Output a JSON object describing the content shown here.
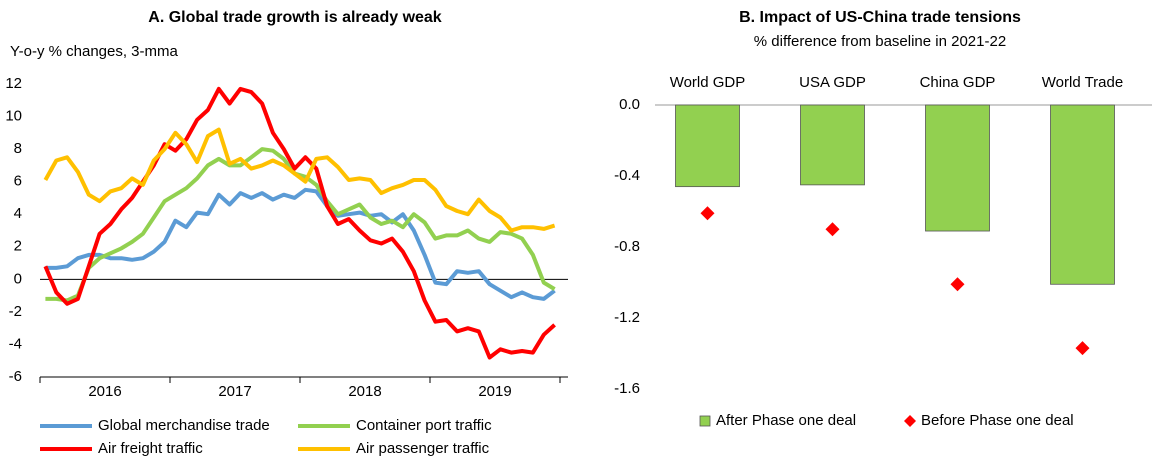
{
  "chart_data": [
    {
      "type": "line",
      "title": "A. Global trade growth is already weak",
      "y_label": "Y-o-y % changes, 3-mma",
      "categories": [
        null,
        null,
        null,
        null,
        null,
        null,
        "2016",
        null,
        null,
        null,
        null,
        null,
        null,
        null,
        null,
        null,
        null,
        null,
        "2017",
        null,
        null,
        null,
        null,
        null,
        null,
        null,
        null,
        null,
        null,
        null,
        "2018",
        null,
        null,
        null,
        null,
        null,
        null,
        null,
        null,
        null,
        null,
        null,
        "2019",
        null,
        null,
        null,
        null,
        null
      ],
      "ylim": [
        -6,
        12
      ],
      "yticks": [
        -6,
        -4,
        -2,
        0,
        2,
        4,
        6,
        8,
        10,
        12
      ],
      "series": [
        {
          "name": "Global merchandise trade",
          "color": "#5b9bd5",
          "values": [
            0.7,
            0.7,
            0.8,
            1.3,
            1.5,
            1.5,
            1.3,
            1.3,
            1.2,
            1.3,
            1.7,
            2.3,
            3.6,
            3.2,
            4.1,
            4.0,
            5.2,
            4.6,
            5.3,
            5.0,
            5.3,
            4.9,
            5.2,
            5.0,
            5.5,
            5.4,
            4.5,
            3.9,
            4.0,
            4.1,
            3.9,
            4.0,
            3.5,
            4.0,
            3.0,
            1.5,
            -0.2,
            -0.3,
            0.5,
            0.4,
            0.5,
            -0.3,
            -0.7,
            -1.1,
            -0.8,
            -1.1,
            -1.2,
            -0.7
          ]
        },
        {
          "name": "Container port traffic",
          "color": "#92d050",
          "values": [
            -1.2,
            -1.2,
            -1.3,
            -1.0,
            0.7,
            1.3,
            1.6,
            1.9,
            2.3,
            2.8,
            3.8,
            4.8,
            5.2,
            5.6,
            6.2,
            7.0,
            7.4,
            7.0,
            7.0,
            7.5,
            8.0,
            7.9,
            7.4,
            6.5,
            6.3,
            5.8,
            4.8,
            4.0,
            4.3,
            4.6,
            3.8,
            3.4,
            3.6,
            3.2,
            4.0,
            3.5,
            2.5,
            2.7,
            2.7,
            3.0,
            2.5,
            2.3,
            2.9,
            2.8,
            2.5,
            1.5,
            -0.2,
            -0.6
          ]
        },
        {
          "name": "Air freight traffic",
          "color": "#ff0000",
          "values": [
            0.8,
            -0.8,
            -1.5,
            -1.2,
            0.8,
            2.8,
            3.4,
            4.3,
            5.0,
            6.0,
            7.0,
            8.3,
            7.9,
            8.6,
            9.8,
            10.4,
            11.7,
            10.8,
            11.7,
            11.5,
            10.8,
            9.0,
            8.0,
            6.8,
            7.5,
            6.8,
            4.5,
            3.4,
            3.7,
            3.0,
            2.4,
            2.2,
            2.5,
            1.7,
            0.5,
            -1.3,
            -2.6,
            -2.5,
            -3.2,
            -3.0,
            -3.2,
            -4.8,
            -4.3,
            -4.5,
            -4.4,
            -4.5,
            -3.4,
            -2.8
          ]
        },
        {
          "name": "Air passenger traffic",
          "color": "#ffc000",
          "values": [
            6.1,
            7.3,
            7.5,
            6.6,
            5.2,
            4.8,
            5.4,
            5.6,
            6.2,
            5.8,
            7.3,
            8.0,
            9.0,
            8.3,
            7.2,
            8.8,
            9.2,
            7.1,
            7.4,
            6.8,
            7.0,
            7.3,
            7.0,
            6.5,
            6.0,
            7.4,
            7.5,
            6.9,
            6.1,
            6.2,
            6.1,
            5.3,
            5.6,
            5.8,
            6.1,
            6.1,
            5.5,
            4.5,
            4.2,
            4.0,
            4.9,
            4.2,
            3.8,
            3.0,
            3.2,
            3.2,
            3.1,
            3.3
          ]
        }
      ]
    },
    {
      "type": "bar",
      "title": "B. Impact of US-China trade tensions",
      "subtitle": "% difference from baseline in 2021-22",
      "categories": [
        "World GDP",
        "USA GDP",
        "China GDP",
        "World Trade"
      ],
      "ylim": [
        -1.6,
        0
      ],
      "yticks": [
        {
          "value": 0,
          "label": "0.0"
        },
        -0.4,
        -0.8,
        -1.2,
        -1.6
      ],
      "series": [
        {
          "name": "After Phase one deal",
          "type": "bar",
          "color": "#92d050",
          "values": [
            -0.46,
            -0.45,
            -0.71,
            -1.01
          ]
        },
        {
          "name": "Before Phase one deal",
          "type": "scatter",
          "color": "#ff0000",
          "values": [
            -0.61,
            -0.7,
            -1.01,
            -1.37
          ]
        }
      ]
    }
  ]
}
